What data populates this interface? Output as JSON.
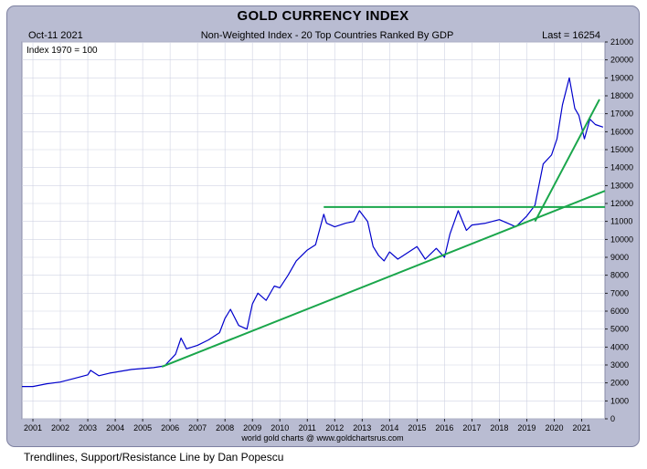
{
  "header": {
    "title": "GOLD CURRENCY INDEX",
    "date": "Oct-11  2021",
    "subtitle": "Non-Weighted Index - 20 Top Countries Ranked By GDP",
    "last_label": "Last = 16254"
  },
  "caption": "Trendlines, Support/Resistance Line by Dan Popescu",
  "colors": {
    "panel_bg": "#b9bcd2",
    "plot_bg": "#ffffff",
    "series": "#0000cc",
    "trendline": "#1aa64b",
    "grid": "#d0d3e3"
  },
  "chart_data": {
    "type": "line",
    "title": "GOLD CURRENCY INDEX",
    "subtitle": "Non-Weighted Index - 20 Top Countries Ranked By GDP",
    "note": "Index 1970 = 100",
    "source": "world gold charts @ www.goldchartsrus.com",
    "xlim": [
      2000.6,
      2021.85
    ],
    "ylim": [
      0,
      21000
    ],
    "x_ticks": [
      2001,
      2002,
      2003,
      2004,
      2005,
      2006,
      2007,
      2008,
      2009,
      2010,
      2011,
      2012,
      2013,
      2014,
      2015,
      2016,
      2017,
      2018,
      2019,
      2020,
      2021
    ],
    "y_ticks": [
      0,
      1000,
      2000,
      3000,
      4000,
      5000,
      6000,
      7000,
      8000,
      9000,
      10000,
      11000,
      12000,
      13000,
      14000,
      15000,
      16000,
      17000,
      18000,
      19000,
      20000,
      21000
    ],
    "series": [
      {
        "name": "Gold Currency Index",
        "points": [
          [
            2000.6,
            1800
          ],
          [
            2001.0,
            1800
          ],
          [
            2001.5,
            1950
          ],
          [
            2002.0,
            2050
          ],
          [
            2002.5,
            2250
          ],
          [
            2003.0,
            2450
          ],
          [
            2003.1,
            2700
          ],
          [
            2003.4,
            2400
          ],
          [
            2003.8,
            2550
          ],
          [
            2004.2,
            2650
          ],
          [
            2004.6,
            2750
          ],
          [
            2005.0,
            2800
          ],
          [
            2005.4,
            2850
          ],
          [
            2005.8,
            2950
          ],
          [
            2006.2,
            3600
          ],
          [
            2006.4,
            4500
          ],
          [
            2006.6,
            3900
          ],
          [
            2007.0,
            4100
          ],
          [
            2007.4,
            4400
          ],
          [
            2007.8,
            4800
          ],
          [
            2008.0,
            5600
          ],
          [
            2008.2,
            6100
          ],
          [
            2008.5,
            5200
          ],
          [
            2008.8,
            5000
          ],
          [
            2009.0,
            6400
          ],
          [
            2009.2,
            7000
          ],
          [
            2009.5,
            6600
          ],
          [
            2009.8,
            7400
          ],
          [
            2010.0,
            7300
          ],
          [
            2010.3,
            8000
          ],
          [
            2010.6,
            8800
          ],
          [
            2011.0,
            9400
          ],
          [
            2011.3,
            9700
          ],
          [
            2011.6,
            11400
          ],
          [
            2011.7,
            10900
          ],
          [
            2012.0,
            10700
          ],
          [
            2012.4,
            10900
          ],
          [
            2012.7,
            11000
          ],
          [
            2012.9,
            11600
          ],
          [
            2013.2,
            11000
          ],
          [
            2013.4,
            9600
          ],
          [
            2013.6,
            9100
          ],
          [
            2013.8,
            8800
          ],
          [
            2014.0,
            9300
          ],
          [
            2014.3,
            8900
          ],
          [
            2014.6,
            9200
          ],
          [
            2015.0,
            9600
          ],
          [
            2015.3,
            8900
          ],
          [
            2015.7,
            9500
          ],
          [
            2016.0,
            9000
          ],
          [
            2016.2,
            10300
          ],
          [
            2016.5,
            11600
          ],
          [
            2016.8,
            10500
          ],
          [
            2017.0,
            10800
          ],
          [
            2017.5,
            10900
          ],
          [
            2018.0,
            11100
          ],
          [
            2018.3,
            10900
          ],
          [
            2018.6,
            10700
          ],
          [
            2019.0,
            11300
          ],
          [
            2019.3,
            11900
          ],
          [
            2019.6,
            14200
          ],
          [
            2019.9,
            14700
          ],
          [
            2020.1,
            15600
          ],
          [
            2020.3,
            17500
          ],
          [
            2020.55,
            19000
          ],
          [
            2020.75,
            17300
          ],
          [
            2020.9,
            16900
          ],
          [
            2021.1,
            15600
          ],
          [
            2021.3,
            16700
          ],
          [
            2021.5,
            16400
          ],
          [
            2021.78,
            16254
          ]
        ]
      }
    ],
    "trendlines": [
      {
        "name": "long-term-uptrend",
        "points": [
          [
            2005.7,
            2900
          ],
          [
            2021.85,
            12700
          ]
        ]
      },
      {
        "name": "resistance-line",
        "points": [
          [
            2011.6,
            11800
          ],
          [
            2021.85,
            11800
          ]
        ]
      },
      {
        "name": "steep-uptrend",
        "points": [
          [
            2019.3,
            11000
          ],
          [
            2021.65,
            17800
          ]
        ]
      }
    ]
  }
}
